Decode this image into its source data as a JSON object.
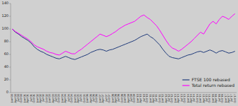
{
  "chart_data": {
    "type": "line",
    "categories": [
      "Jan'00",
      "Apr'00",
      "Jul'00",
      "Oct'00",
      "Jan'01",
      "Apr'01",
      "Jul'01",
      "Oct'01",
      "Jan'02",
      "Apr'02",
      "Jul'02",
      "Oct'02",
      "Jan'03",
      "Apr'03",
      "Jul'03",
      "Oct'03",
      "Jan'04",
      "Apr'04",
      "Jul'04",
      "Oct'04",
      "Jan'05",
      "Apr'05",
      "Jul'05",
      "Oct'05",
      "Jan'06",
      "Apr'06",
      "Jul'06",
      "Oct'06",
      "Jan'07",
      "Apr'07",
      "Jul'07",
      "Oct'07",
      "Jan'08",
      "Apr'08",
      "Jul'08",
      "Oct'08",
      "Jan'09",
      "Apr'09",
      "Jul'09",
      "Oct'09",
      "Jan'10",
      "Apr'10",
      "Jul'10",
      "Oct'10",
      "Jan'11",
      "Apr'11",
      "Jul'11",
      "Oct'11",
      "Jan'12",
      "Apr'12",
      "Jul'12",
      "Oct'12",
      "Jan'13",
      "Apr'13",
      "Jul'13",
      "Oct'13",
      "Jan'14",
      "Apr'14",
      "Jul'14",
      "Oct'14",
      "Jan'15",
      "Apr'15",
      "Jul'15",
      "Oct'15",
      "Jan'16",
      "Apr'16",
      "Jul'16",
      "Oct'16",
      "Jan'17",
      "Apr'17",
      "Jul'17",
      "Oct'17"
    ],
    "series": [
      {
        "name": "FTSE 100 rebased",
        "color": "#1f3a7a",
        "values": [
          100,
          95,
          92,
          88,
          85,
          82,
          78,
          72,
          68,
          65,
          63,
          60,
          58,
          56,
          54,
          53,
          55,
          57,
          55,
          53,
          52,
          54,
          56,
          58,
          60,
          63,
          65,
          67,
          68,
          67,
          65,
          67,
          68,
          70,
          72,
          74,
          76,
          78,
          80,
          82,
          85,
          88,
          90,
          92,
          88,
          85,
          80,
          75,
          68,
          62,
          57,
          55,
          54,
          53,
          55,
          57,
          59,
          60,
          62,
          64,
          65,
          63,
          65,
          67,
          65,
          62,
          65,
          66,
          64,
          62,
          63,
          65
        ]
      },
      {
        "name": "Total return rebased",
        "color": "#ff00ff",
        "values": [
          100,
          96,
          93,
          90,
          87,
          84,
          80,
          75,
          72,
          70,
          68,
          65,
          63,
          62,
          60,
          59,
          62,
          65,
          63,
          61,
          61,
          65,
          68,
          72,
          76,
          80,
          84,
          88,
          92,
          90,
          88,
          90,
          93,
          96,
          100,
          103,
          106,
          108,
          110,
          112,
          116,
          120,
          122,
          118,
          115,
          110,
          105,
          98,
          90,
          82,
          75,
          70,
          68,
          65,
          68,
          72,
          76,
          80,
          85,
          90,
          95,
          92,
          100,
          108,
          112,
          108,
          115,
          120,
          118,
          115,
          120,
          124
        ]
      }
    ],
    "ylim": [
      0,
      140
    ],
    "yticks": [
      0,
      20,
      40,
      60,
      80,
      100,
      120,
      140
    ],
    "legend": "lower right",
    "grid": false
  }
}
